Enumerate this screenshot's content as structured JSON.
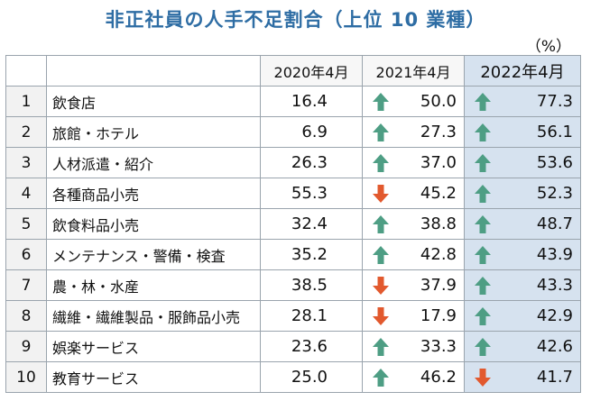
{
  "title": "非正社員の人手不足割合（上位 10 業種）",
  "unit": "（%）",
  "colors": {
    "up": "#4e9e84",
    "down": "#e2592e",
    "title": "#2e6da4",
    "highlight": "#d6e2ef"
  },
  "chart_data": {
    "type": "table",
    "title": "非正社員の人手不足割合（上位 10 業種）",
    "unit": "（%）",
    "columns": [
      "2020年4月",
      "2021年4月",
      "2022年4月"
    ],
    "rows": [
      {
        "rank": "1",
        "industry": "飲食店",
        "values": [
          "16.4",
          "50.0",
          "77.3"
        ],
        "trend": [
          "",
          "up",
          "up"
        ]
      },
      {
        "rank": "2",
        "industry": "旅館・ホテル",
        "values": [
          "6.9",
          "27.3",
          "56.1"
        ],
        "trend": [
          "",
          "up",
          "up"
        ]
      },
      {
        "rank": "3",
        "industry": "人材派遣・紹介",
        "values": [
          "26.3",
          "37.0",
          "53.6"
        ],
        "trend": [
          "",
          "up",
          "up"
        ]
      },
      {
        "rank": "4",
        "industry": "各種商品小売",
        "values": [
          "55.3",
          "45.2",
          "52.3"
        ],
        "trend": [
          "",
          "down",
          "up"
        ]
      },
      {
        "rank": "5",
        "industry": "飲食料品小売",
        "values": [
          "32.4",
          "38.8",
          "48.7"
        ],
        "trend": [
          "",
          "up",
          "up"
        ]
      },
      {
        "rank": "6",
        "industry": "メンテナンス・警備・検査",
        "values": [
          "35.2",
          "42.8",
          "43.9"
        ],
        "trend": [
          "",
          "up",
          "up"
        ]
      },
      {
        "rank": "7",
        "industry": "農・林・水産",
        "values": [
          "38.5",
          "37.9",
          "43.3"
        ],
        "trend": [
          "",
          "down",
          "up"
        ]
      },
      {
        "rank": "8",
        "industry": "繊維・繊維製品・服飾品小売",
        "values": [
          "28.1",
          "17.9",
          "42.9"
        ],
        "trend": [
          "",
          "down",
          "up"
        ]
      },
      {
        "rank": "9",
        "industry": "娯楽サービス",
        "values": [
          "23.6",
          "33.3",
          "42.6"
        ],
        "trend": [
          "",
          "up",
          "up"
        ]
      },
      {
        "rank": "10",
        "industry": "教育サービス",
        "values": [
          "25.0",
          "46.2",
          "41.7"
        ],
        "trend": [
          "",
          "up",
          "down"
        ]
      }
    ]
  }
}
